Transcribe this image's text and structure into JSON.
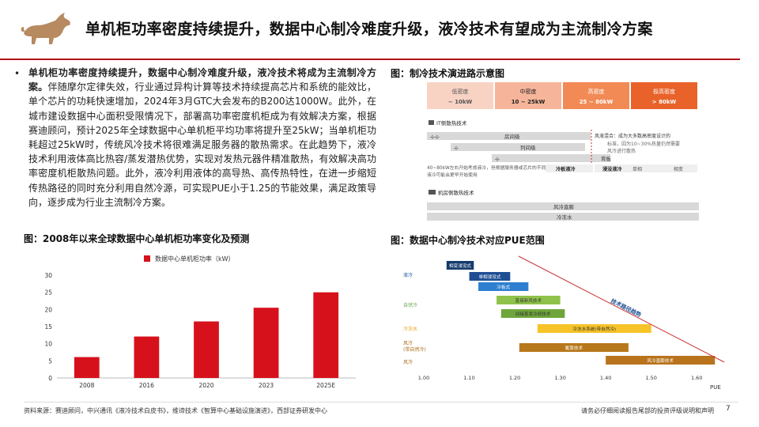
{
  "header": {
    "title": "单机柜功率密度持续提升，数据中心制冷难度升级，液冷技术有望成为主流制冷方案",
    "accent_color": "#b3121a"
  },
  "body": {
    "bullet": "•",
    "lead": "单机柜功率密度持续提升，数据中心制冷难度升级，液冷技术将成为主流制冷方案。",
    "text": "伴随摩尔定律失效，行业通过异构计算等技术持续提高芯片和系统的能效比，单个芯片的功耗快速增加，2024年3月GTC大会发布的B200达1000W。此外，在城市建设数据中心面积受限情况下，部署高功率密度机柜成为有效解决方案，根据赛迪顾问，预计2025年全球数据中心单机柜平均功率将提升至25kW；当单机柜功耗超过25kW时，传统风冷技术将很难满足服务器的散热需求。在此趋势下，液冷技术利用液体高比热容/蒸发潜热优势，实现对发热元器件精准散热，有效解决高功率密度机柜散热问题。此外，液冷利用液体的高导热、高传热特性，在进一步缩短传热路径的同时充分利用自然冷源，可实现PUE小于1.25的节能效果，满足政策导向，逐步成为行业主流制冷方案。"
  },
  "section_titles": {
    "evolution": "图：制冷技术演进路示意图",
    "bar_chart": "图：2008年以来全球数据中心单机柜功率变化及预测",
    "pue": "图：数据中心制冷技术对应PUE范围"
  },
  "evolution": {
    "densities": [
      {
        "name": "低密度",
        "range": "~ 10kW",
        "color": "#f8d3c4",
        "text_color": "#555"
      },
      {
        "name": "中密度",
        "range": "10 ~ 25kW",
        "color": "#f6b59a",
        "text_color": "#222"
      },
      {
        "name": "高密度",
        "range": "25 ~ 80kW",
        "color": "#f28a55",
        "text_color": "#fff"
      },
      {
        "name": "极高密度",
        "range": "> 80kW",
        "color": "#e8622a",
        "text_color": "#fff"
      }
    ],
    "it_title": "IT侧散热技术",
    "it_rows": [
      "房间级",
      "列间级",
      "背板"
    ],
    "note_right_lead": "风液混合",
    "note_right": "IT侧散热技术",
    "note_right_1": "风液混合：成为大多数高密度设计的",
    "note_right_2": "标准，因为10~30%热量仍然需要",
    "note_right_3": "风冷进行散热",
    "note_left_1": "40~80kW左右开始考虑液冷，但根据服务器或芯片的不同，",
    "note_left_2": "液冷可能会更早开始使用",
    "cold_plate": "冷板液冷",
    "immersion": "浸没液冷",
    "single_phase": "单相",
    "two_phase": "相变",
    "room_title": "机房侧散热技术",
    "room_rows": [
      "风冷直膨",
      "冷冻水"
    ]
  },
  "chart_data": {
    "type": "bar",
    "legend": "数据中心单机柜功率（kW）",
    "categories": [
      "2008",
      "2016",
      "2020",
      "2023",
      "2025E"
    ],
    "values": [
      6.1,
      12.1,
      16.5,
      20.5,
      25
    ],
    "ylim": [
      0,
      30
    ],
    "yticks": [
      "0",
      "5",
      "10",
      "15",
      "20",
      "25",
      "30"
    ],
    "color": "#d7111b"
  },
  "pue_chart": {
    "type": "range",
    "xlabel": "PUE",
    "xticks": [
      "1.00",
      "1.10",
      "1.20",
      "1.30",
      "1.40",
      "1.50",
      "1.60"
    ],
    "categories": [
      {
        "name": "液冷",
        "color": "#1f5aa6"
      },
      {
        "name": "自然冷",
        "color": "#6aa84f"
      },
      {
        "name": "冷冻水",
        "color": "#e8a31b"
      },
      {
        "name": "风冷\n(带自然冷)",
        "color": "#a86a12"
      },
      {
        "name": "风冷",
        "color": "#a86a12"
      }
    ],
    "bars": [
      {
        "label": "相变浸没式",
        "start": 1.05,
        "end": 1.11,
        "color": "#143b6d"
      },
      {
        "label": "单相浸没式",
        "start": 1.1,
        "end": 1.19,
        "color": "#1f4f93"
      },
      {
        "label": "冷板式",
        "start": 1.12,
        "end": 1.23,
        "color": "#2e7fd0"
      },
      {
        "label": "直接新风技术",
        "start": 1.16,
        "end": 1.3,
        "color": "#8fc24a"
      },
      {
        "label": "间接蒸发冷却技术",
        "start": 1.17,
        "end": 1.31,
        "color": "#6fa63b"
      },
      {
        "label": "冷冻水系统(带自然冷)",
        "start": 1.25,
        "end": 1.5,
        "color": "#f6c328"
      },
      {
        "label": "氟泵技术",
        "start": 1.21,
        "end": 1.45,
        "color": "#b7781c"
      },
      {
        "label": "风冷直膨技术",
        "start": 1.4,
        "end": 1.64,
        "color": "#b8731c"
      }
    ],
    "arrow_label": "技术路径趋势"
  },
  "footer": {
    "source": "资料来源：赛迪顾问，中兴通讯《液冷技术白皮书》，维谛技术《智算中心基础设施演进》，西部证券研发中心",
    "disclaimer": "请务必仔细阅读报告尾部的投资评级说明和声明",
    "page": "7"
  }
}
